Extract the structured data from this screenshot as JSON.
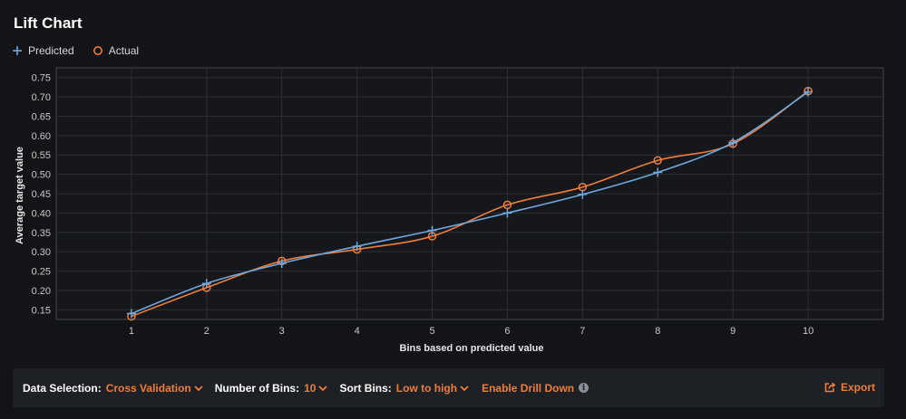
{
  "title": "Lift Chart",
  "legend": {
    "predicted": "Predicted",
    "actual": "Actual"
  },
  "colors": {
    "predicted": "#6ea8e0",
    "actual": "#ef7d3a",
    "grid": "#2c3036",
    "axis": "#444a52",
    "tick_text": "#c8c8c8"
  },
  "chart_data": {
    "type": "line",
    "title": "Lift Chart",
    "xlabel": "Bins based on predicted value",
    "ylabel": "Average target value",
    "x": [
      1,
      2,
      3,
      4,
      5,
      6,
      7,
      8,
      9,
      10
    ],
    "xlim": [
      0.0,
      11.0
    ],
    "ylim": [
      0.125,
      0.775
    ],
    "yticks": [
      0.15,
      0.2,
      0.25,
      0.3,
      0.35,
      0.4,
      0.45,
      0.5,
      0.55,
      0.6,
      0.65,
      0.7,
      0.75
    ],
    "xticks": [
      1,
      2,
      3,
      4,
      5,
      6,
      7,
      8,
      9,
      10
    ],
    "grid": true,
    "legend_position": "top-left",
    "series": [
      {
        "name": "Predicted",
        "marker": "plus",
        "values": [
          0.14,
          0.218,
          0.27,
          0.314,
          0.355,
          0.4,
          0.448,
          0.505,
          0.582,
          0.713
        ]
      },
      {
        "name": "Actual",
        "marker": "circle",
        "values": [
          0.133,
          0.207,
          0.276,
          0.306,
          0.34,
          0.421,
          0.467,
          0.536,
          0.579,
          0.715
        ]
      }
    ]
  },
  "controls": {
    "data_selection_label": "Data Selection:",
    "data_selection_value": "Cross Validation",
    "bins_label": "Number of Bins:",
    "bins_value": "10",
    "sort_label": "Sort Bins:",
    "sort_value": "Low to high",
    "drill_label": "Enable Drill Down",
    "export_label": "Export"
  }
}
